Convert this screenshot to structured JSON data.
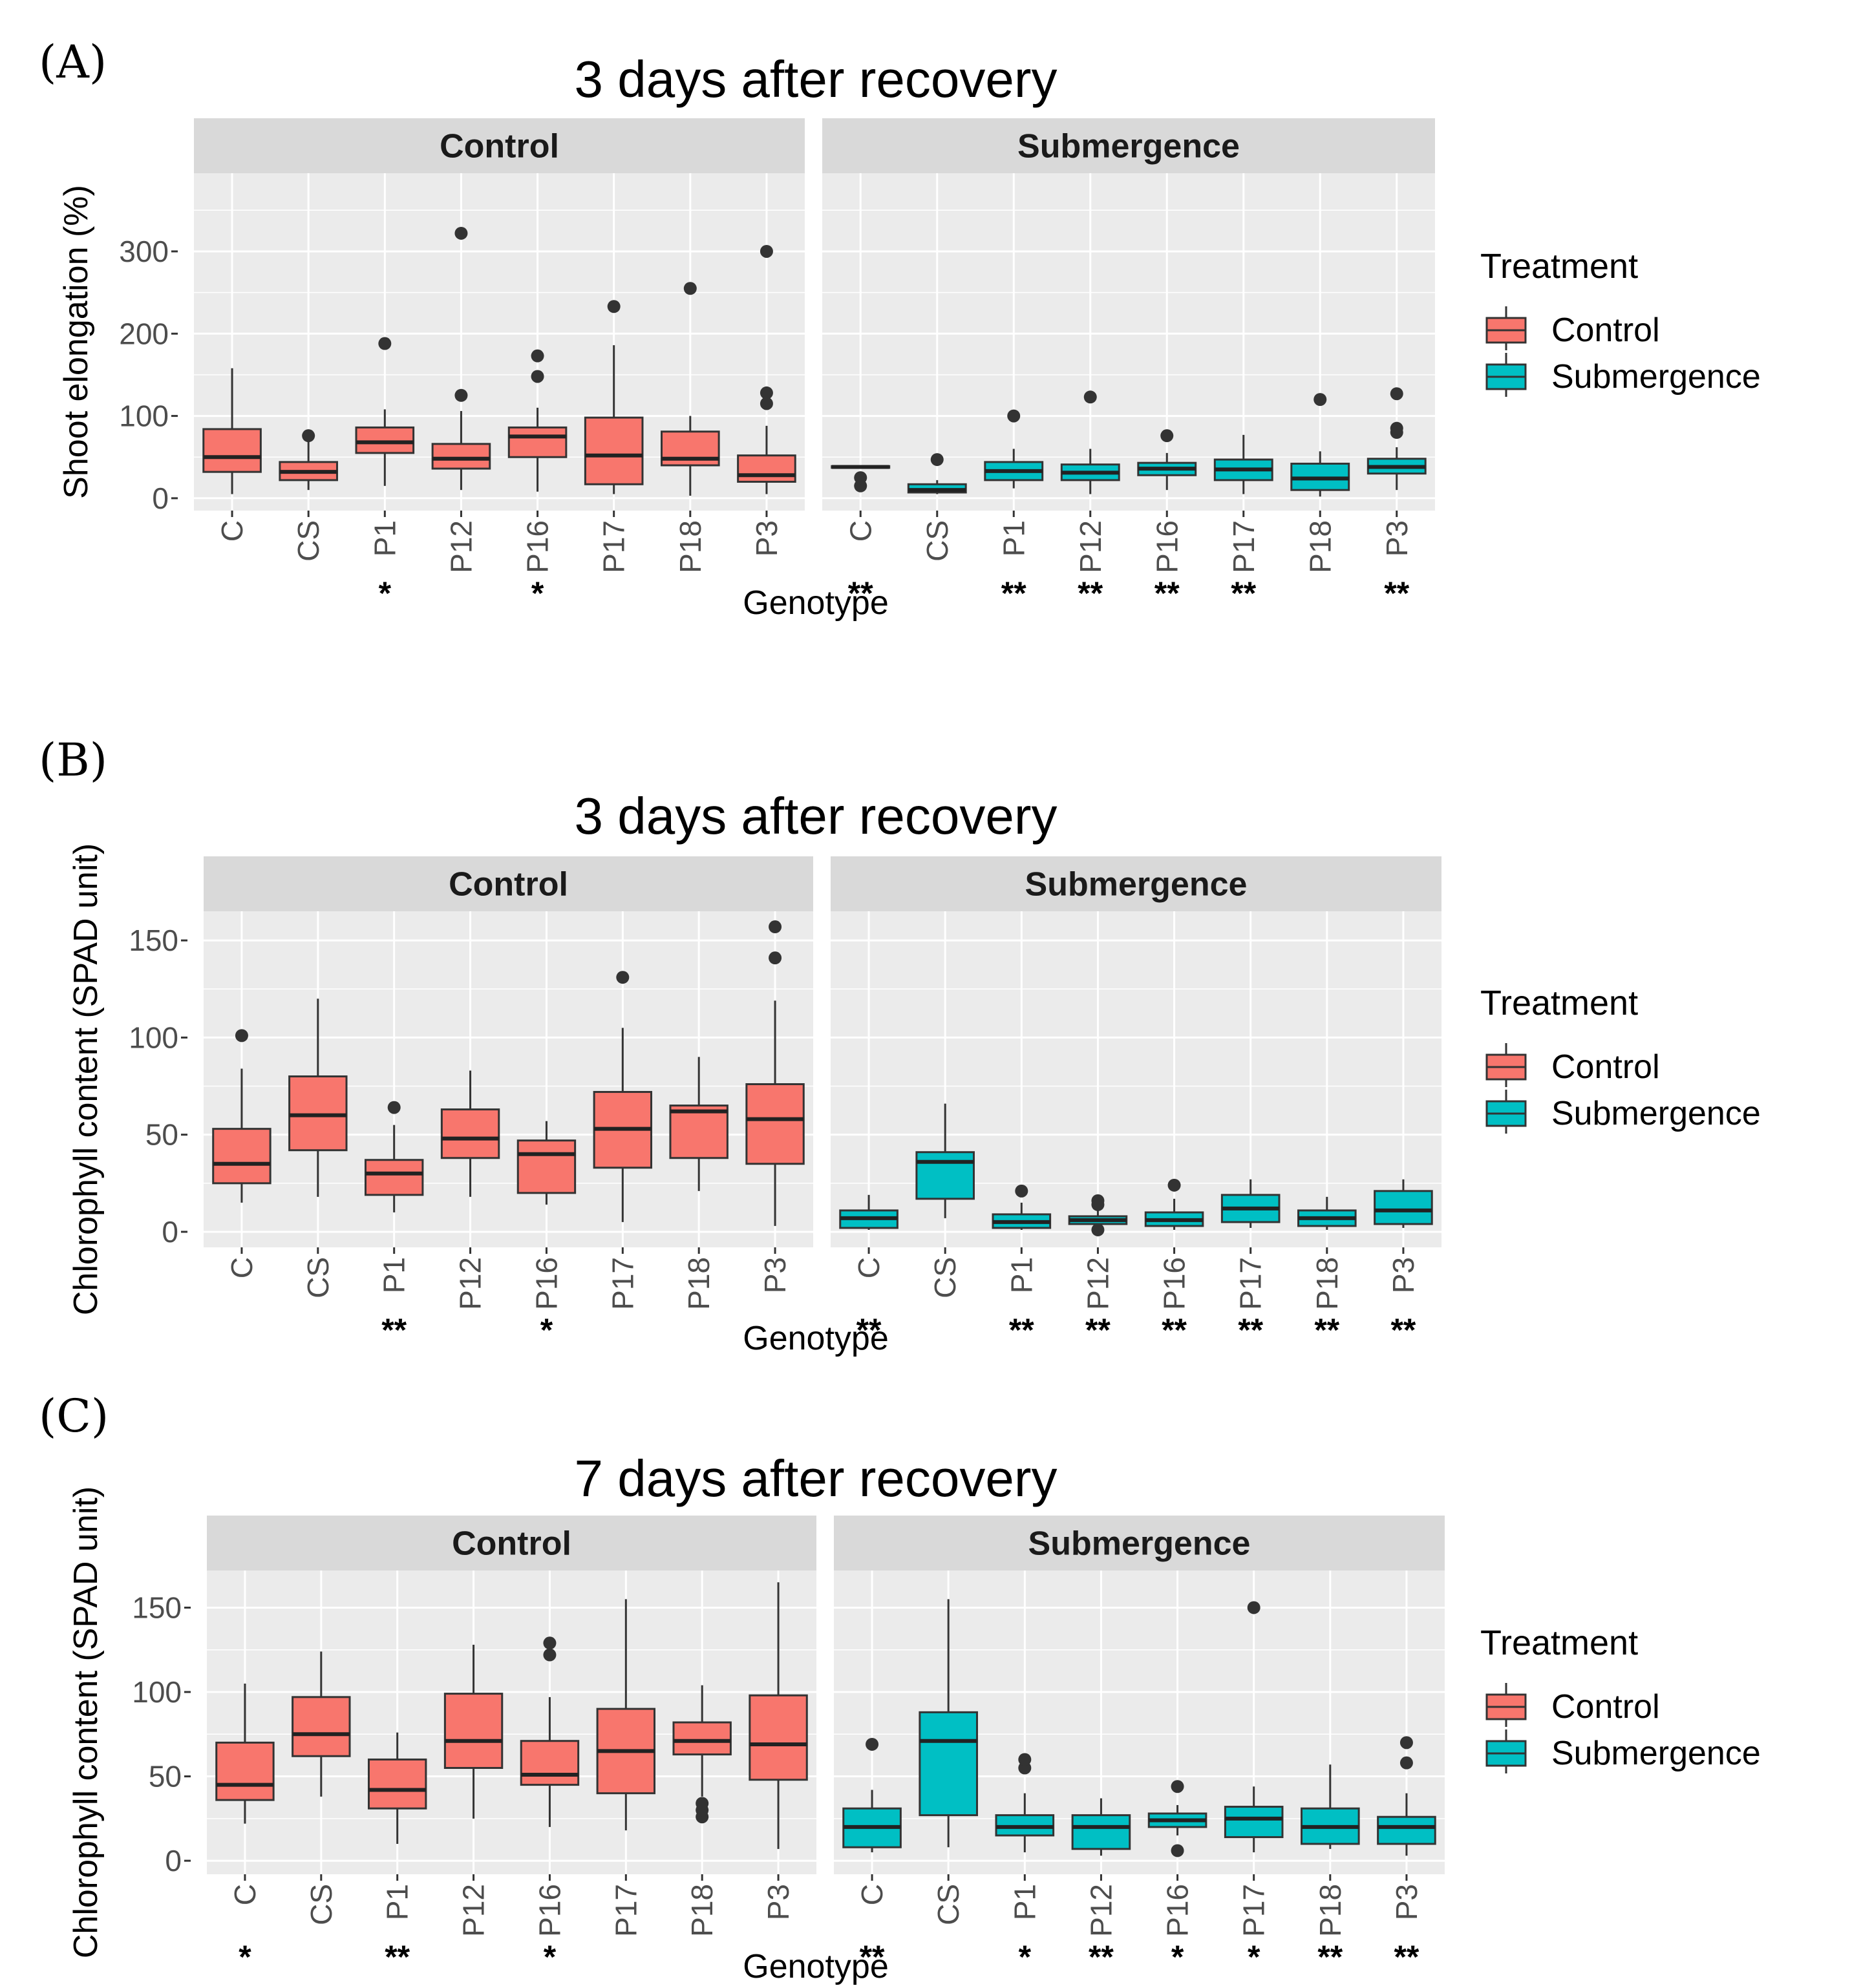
{
  "colors": {
    "control": "#F8766D",
    "submergence": "#00BFC4",
    "panel_bg": "#EBEBEB",
    "strip_bg": "#D9D9D9",
    "grid": "#FFFFFF"
  },
  "chart_data": [
    {
      "type": "boxplot",
      "panel_label": "(A)",
      "title": "3 days after recovery",
      "ylabel": "Shoot elongation (%)",
      "xlabel": "Genotype",
      "ylim": [
        -15,
        395
      ],
      "yticks": [
        0,
        100,
        200,
        300
      ],
      "legend_title": "Treatment",
      "legend_labels": [
        "Control",
        "Submergence"
      ],
      "facets": [
        {
          "name": "Control",
          "categories": [
            "C",
            "CS",
            "P1",
            "P12",
            "P16",
            "P17",
            "P18",
            "P3"
          ],
          "significance": [
            "",
            "",
            "*",
            "",
            "*",
            "",
            "",
            ""
          ],
          "boxes": [
            {
              "min": 5,
              "q1": 32,
              "median": 50,
              "q3": 84,
              "max": 158,
              "outliers": []
            },
            {
              "min": 10,
              "q1": 22,
              "median": 32,
              "q3": 44,
              "max": 76,
              "outliers": [
                76
              ]
            },
            {
              "min": 15,
              "q1": 55,
              "median": 68,
              "q3": 86,
              "max": 108,
              "outliers": [
                188
              ]
            },
            {
              "min": 10,
              "q1": 36,
              "median": 48,
              "q3": 66,
              "max": 106,
              "outliers": [
                125,
                322
              ]
            },
            {
              "min": 8,
              "q1": 50,
              "median": 75,
              "q3": 86,
              "max": 110,
              "outliers": [
                148,
                173
              ]
            },
            {
              "min": 5,
              "q1": 17,
              "median": 52,
              "q3": 98,
              "max": 186,
              "outliers": [
                233
              ]
            },
            {
              "min": 3,
              "q1": 40,
              "median": 48,
              "q3": 81,
              "max": 100,
              "outliers": [
                255
              ]
            },
            {
              "min": 5,
              "q1": 20,
              "median": 28,
              "q3": 52,
              "max": 88,
              "outliers": [
                115,
                128,
                300
              ]
            }
          ]
        },
        {
          "name": "Submergence",
          "categories": [
            "C",
            "CS",
            "P1",
            "P12",
            "P16",
            "P17",
            "P18",
            "P3"
          ],
          "significance": [
            "**",
            "",
            "**",
            "**",
            "**",
            "**",
            "",
            "**"
          ],
          "boxes": [
            {
              "min": 37,
              "q1": 37,
              "median": 38,
              "q3": 39,
              "max": 40,
              "outliers": [
                15,
                25
              ]
            },
            {
              "min": 5,
              "q1": 7,
              "median": 10,
              "q3": 17,
              "max": 22,
              "outliers": [
                47
              ]
            },
            {
              "min": 12,
              "q1": 22,
              "median": 33,
              "q3": 44,
              "max": 60,
              "outliers": [
                100
              ]
            },
            {
              "min": 5,
              "q1": 22,
              "median": 31,
              "q3": 41,
              "max": 60,
              "outliers": [
                123
              ]
            },
            {
              "min": 10,
              "q1": 28,
              "median": 36,
              "q3": 43,
              "max": 55,
              "outliers": [
                76
              ]
            },
            {
              "min": 5,
              "q1": 22,
              "median": 35,
              "q3": 47,
              "max": 77,
              "outliers": []
            },
            {
              "min": 2,
              "q1": 10,
              "median": 24,
              "q3": 42,
              "max": 57,
              "outliers": [
                120
              ]
            },
            {
              "min": 10,
              "q1": 30,
              "median": 38,
              "q3": 48,
              "max": 62,
              "outliers": [
                80,
                85,
                127
              ]
            }
          ]
        }
      ]
    },
    {
      "type": "boxplot",
      "panel_label": "(B)",
      "title": "3 days after recovery",
      "ylabel": "Chlorophyll content (SPAD unit)",
      "xlabel": "Genotype",
      "ylim": [
        -8,
        165
      ],
      "yticks": [
        0,
        50,
        100,
        150
      ],
      "legend_title": "Treatment",
      "legend_labels": [
        "Control",
        "Submergence"
      ],
      "facets": [
        {
          "name": "Control",
          "categories": [
            "C",
            "CS",
            "P1",
            "P12",
            "P16",
            "P17",
            "P18",
            "P3"
          ],
          "significance": [
            "",
            "",
            "**",
            "",
            "*",
            "",
            "",
            ""
          ],
          "boxes": [
            {
              "min": 15,
              "q1": 25,
              "median": 35,
              "q3": 53,
              "max": 84,
              "outliers": [
                101
              ]
            },
            {
              "min": 18,
              "q1": 42,
              "median": 60,
              "q3": 80,
              "max": 120,
              "outliers": []
            },
            {
              "min": 10,
              "q1": 19,
              "median": 30,
              "q3": 37,
              "max": 55,
              "outliers": [
                64
              ]
            },
            {
              "min": 18,
              "q1": 38,
              "median": 48,
              "q3": 63,
              "max": 83,
              "outliers": []
            },
            {
              "min": 14,
              "q1": 20,
              "median": 40,
              "q3": 47,
              "max": 57,
              "outliers": []
            },
            {
              "min": 5,
              "q1": 33,
              "median": 53,
              "q3": 72,
              "max": 105,
              "outliers": [
                131
              ]
            },
            {
              "min": 21,
              "q1": 38,
              "median": 62,
              "q3": 65,
              "max": 90,
              "outliers": []
            },
            {
              "min": 3,
              "q1": 35,
              "median": 58,
              "q3": 76,
              "max": 119,
              "outliers": [
                141,
                157
              ]
            }
          ]
        },
        {
          "name": "Submergence",
          "categories": [
            "C",
            "CS",
            "P1",
            "P12",
            "P16",
            "P17",
            "P18",
            "P3"
          ],
          "significance": [
            "**",
            "",
            "**",
            "**",
            "**",
            "**",
            "**",
            "**"
          ],
          "boxes": [
            {
              "min": 1,
              "q1": 2,
              "median": 7,
              "q3": 11,
              "max": 19,
              "outliers": []
            },
            {
              "min": 7,
              "q1": 17,
              "median": 36,
              "q3": 41,
              "max": 66,
              "outliers": []
            },
            {
              "min": 1,
              "q1": 2,
              "median": 5,
              "q3": 9,
              "max": 15,
              "outliers": [
                21
              ]
            },
            {
              "min": 2,
              "q1": 4,
              "median": 6,
              "q3": 8,
              "max": 13,
              "outliers": [
                1,
                14,
                16
              ]
            },
            {
              "min": 1,
              "q1": 3,
              "median": 6,
              "q3": 10,
              "max": 17,
              "outliers": [
                24
              ]
            },
            {
              "min": 2,
              "q1": 5,
              "median": 12,
              "q3": 19,
              "max": 27,
              "outliers": []
            },
            {
              "min": 1,
              "q1": 3,
              "median": 7,
              "q3": 11,
              "max": 18,
              "outliers": []
            },
            {
              "min": 2,
              "q1": 4,
              "median": 11,
              "q3": 21,
              "max": 27,
              "outliers": []
            }
          ]
        }
      ]
    },
    {
      "type": "boxplot",
      "panel_label": "(C)",
      "title": "7 days after recovery",
      "ylabel": "Chlorophyll content (SPAD unit)",
      "xlabel": "Genotype",
      "ylim": [
        -8,
        172
      ],
      "yticks": [
        0,
        50,
        100,
        150
      ],
      "legend_title": "Treatment",
      "legend_labels": [
        "Control",
        "Submergence"
      ],
      "facets": [
        {
          "name": "Control",
          "categories": [
            "C",
            "CS",
            "P1",
            "P12",
            "P16",
            "P17",
            "P18",
            "P3"
          ],
          "significance": [
            "*",
            "",
            "**",
            "",
            "*",
            "",
            "",
            ""
          ],
          "boxes": [
            {
              "min": 22,
              "q1": 36,
              "median": 45,
              "q3": 70,
              "max": 105,
              "outliers": []
            },
            {
              "min": 38,
              "q1": 62,
              "median": 75,
              "q3": 97,
              "max": 124,
              "outliers": []
            },
            {
              "min": 10,
              "q1": 31,
              "median": 42,
              "q3": 60,
              "max": 76,
              "outliers": []
            },
            {
              "min": 25,
              "q1": 55,
              "median": 71,
              "q3": 99,
              "max": 128,
              "outliers": []
            },
            {
              "min": 20,
              "q1": 45,
              "median": 51,
              "q3": 71,
              "max": 97,
              "outliers": [
                122,
                129
              ]
            },
            {
              "min": 18,
              "q1": 40,
              "median": 65,
              "q3": 90,
              "max": 155,
              "outliers": []
            },
            {
              "min": 38,
              "q1": 63,
              "median": 71,
              "q3": 82,
              "max": 104,
              "outliers": [
                26,
                30,
                34
              ]
            },
            {
              "min": 7,
              "q1": 48,
              "median": 69,
              "q3": 98,
              "max": 165,
              "outliers": []
            }
          ]
        },
        {
          "name": "Submergence",
          "categories": [
            "C",
            "CS",
            "P1",
            "P12",
            "P16",
            "P17",
            "P18",
            "P3"
          ],
          "significance": [
            "**",
            "",
            "*",
            "**",
            "*",
            "*",
            "**",
            "**"
          ],
          "boxes": [
            {
              "min": 5,
              "q1": 8,
              "median": 20,
              "q3": 31,
              "max": 42,
              "outliers": [
                69
              ]
            },
            {
              "min": 8,
              "q1": 27,
              "median": 71,
              "q3": 88,
              "max": 155,
              "outliers": []
            },
            {
              "min": 5,
              "q1": 15,
              "median": 20,
              "q3": 27,
              "max": 40,
              "outliers": [
                55,
                60
              ]
            },
            {
              "min": 3,
              "q1": 7,
              "median": 20,
              "q3": 27,
              "max": 37,
              "outliers": []
            },
            {
              "min": 15,
              "q1": 20,
              "median": 24,
              "q3": 28,
              "max": 33,
              "outliers": [
                6,
                44
              ]
            },
            {
              "min": 5,
              "q1": 14,
              "median": 25,
              "q3": 32,
              "max": 44,
              "outliers": [
                150
              ]
            },
            {
              "min": 7,
              "q1": 10,
              "median": 20,
              "q3": 31,
              "max": 57,
              "outliers": []
            },
            {
              "min": 3,
              "q1": 10,
              "median": 20,
              "q3": 26,
              "max": 40,
              "outliers": [
                58,
                70
              ]
            }
          ]
        }
      ]
    }
  ]
}
